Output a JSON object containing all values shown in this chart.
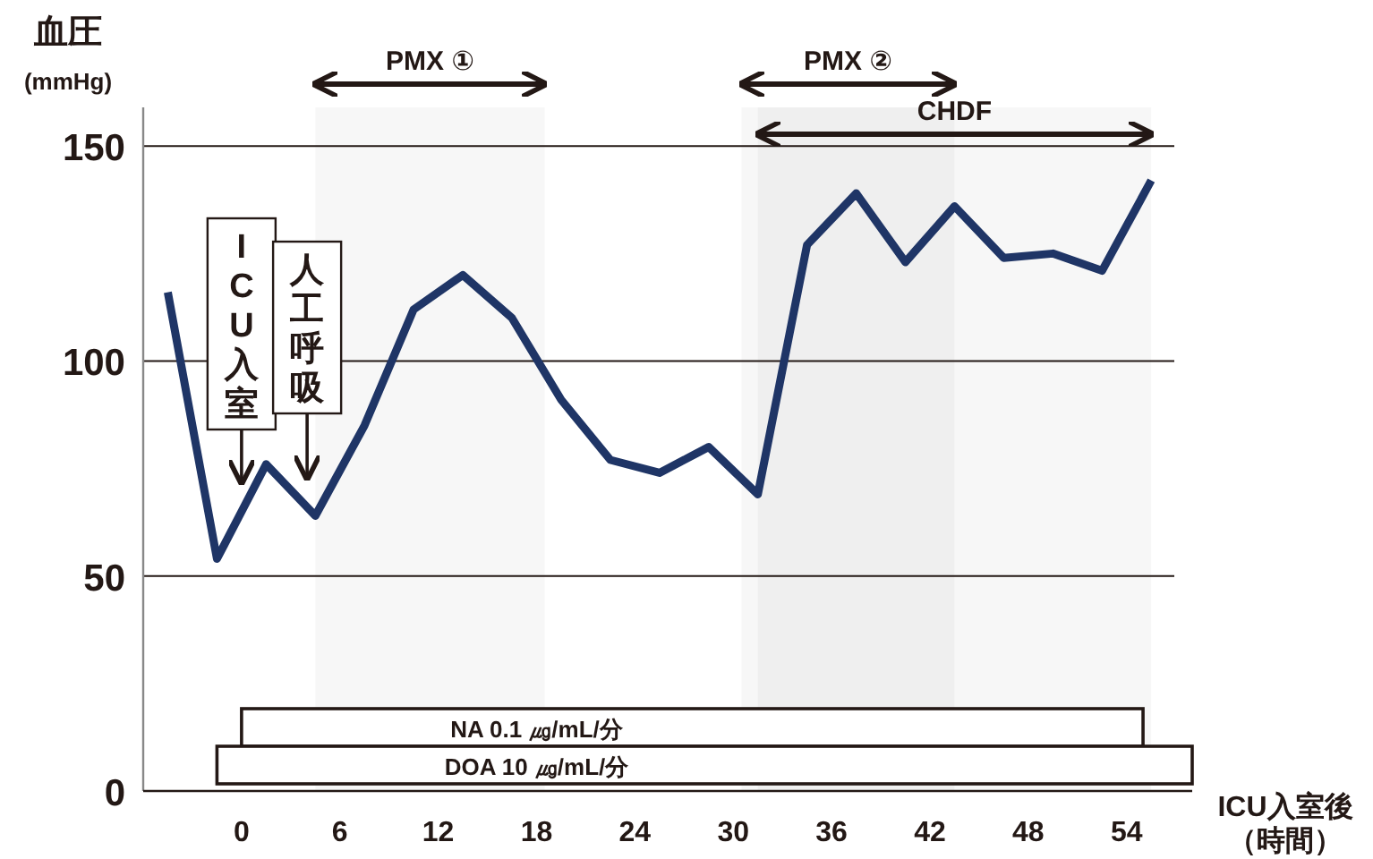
{
  "chart_data": {
    "type": "line",
    "xlabel": "ICU入室後（時間）",
    "ylabel": "血圧\n(mmHg)",
    "x": [
      -4.5,
      -1.5,
      1.5,
      4.5,
      7.5,
      10.5,
      13.5,
      16.5,
      19.5,
      22.5,
      25.5,
      28.5,
      31.5,
      34.5,
      37.5,
      40.5,
      43.5,
      46.5,
      49.5,
      52.5,
      55.5
    ],
    "series": [
      {
        "color": "#1f3566",
        "values": [
          116,
          54,
          76,
          64,
          85,
          112,
          120,
          110,
          91,
          77,
          74,
          80,
          69,
          127,
          139,
          123,
          136,
          124,
          125,
          121,
          142
        ]
      }
    ],
    "xlim": [
      -6,
      58
    ],
    "xticks": [
      0,
      6,
      12,
      18,
      24,
      30,
      36,
      42,
      48,
      54
    ],
    "ylim": [
      0,
      159
    ],
    "yticks": [
      0,
      50,
      100,
      150
    ],
    "grid": "y",
    "marker": "none",
    "line_style": "solid",
    "annotations": [
      {
        "text": "ICU入室",
        "x": 0,
        "y": 65
      },
      {
        "text": "人工呼吸",
        "x": 4,
        "y": 66
      }
    ],
    "bands": [
      {
        "axis": "x",
        "from": 4.5,
        "to": 18.5,
        "label": "PMX ①"
      },
      {
        "axis": "x",
        "from": 30.5,
        "to": 43.5,
        "label": "PMX ②"
      },
      {
        "axis": "x",
        "from": 31.5,
        "to": 55.5,
        "label": "CHDF"
      },
      {
        "axis": "x",
        "from": 0,
        "to": 55,
        "label": "NA 0.1 ㎍/mL/分",
        "color": "#ffffff"
      },
      {
        "axis": "x",
        "from": -1.5,
        "to": 58,
        "label": "DOA 10 ㎍/mL/分",
        "color": "#ffffff"
      }
    ]
  }
}
